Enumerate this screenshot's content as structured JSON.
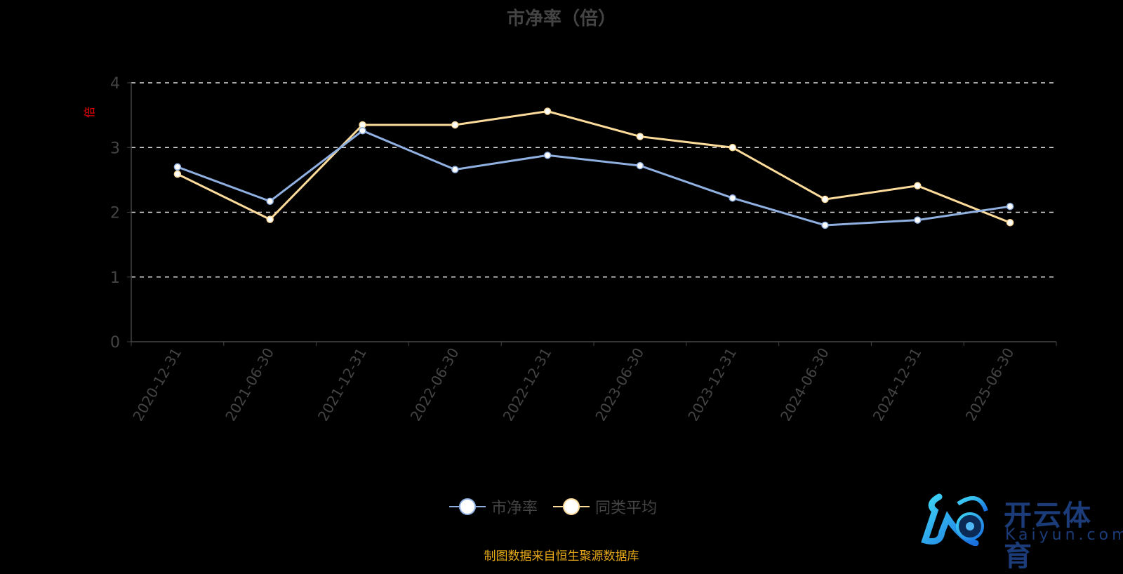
{
  "chart_data": {
    "type": "line",
    "title": "市净率（倍）",
    "ylabel": "倍",
    "xlabel": "",
    "categories": [
      "2020-12-31",
      "2021-06-30",
      "2021-12-31",
      "2022-06-30",
      "2022-12-31",
      "2023-06-30",
      "2023-12-31",
      "2024-06-30",
      "2024-12-31",
      "2025-06-30"
    ],
    "ylim": [
      0,
      4
    ],
    "yticks": [
      "0",
      "1",
      "2",
      "3",
      "4"
    ],
    "grid": true,
    "legend_position": "bottom",
    "series": [
      {
        "name": "市净率",
        "color": "#8fb0e0",
        "values": [
          2.7,
          2.17,
          3.26,
          2.66,
          2.88,
          2.72,
          2.22,
          1.8,
          1.88,
          2.09
        ]
      },
      {
        "name": "同类平均",
        "color": "#fddc9b",
        "values": [
          2.59,
          1.89,
          3.35,
          3.35,
          3.56,
          3.17,
          3.0,
          2.2,
          2.41,
          1.84
        ]
      }
    ]
  },
  "source": "制图数据来自恒生聚源数据库",
  "logo": {
    "cn": "开云体育",
    "en": "Kaiyun.com"
  }
}
